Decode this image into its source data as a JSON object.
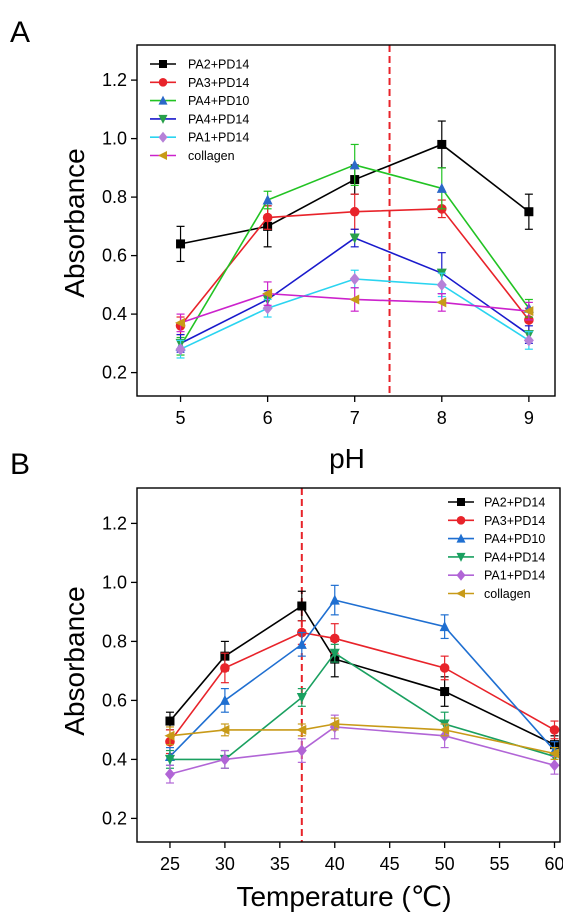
{
  "chart_data": [
    {
      "type": "line",
      "panel_label": "A",
      "xlabel": "pH",
      "ylabel": "Absorbance",
      "xlim": [
        4.5,
        9.3
      ],
      "ylim": [
        0.12,
        1.32
      ],
      "xticks": [
        5,
        6,
        7,
        8,
        9
      ],
      "yticks": [
        0.2,
        0.4,
        0.6,
        0.8,
        1.0,
        1.2
      ],
      "ytick_labels": [
        "0.2",
        "0.4",
        "0.6",
        "0.8",
        "1.0",
        "1.2"
      ],
      "reference_line": {
        "x": 7.4,
        "color": "#e8232a",
        "style": "dashed"
      },
      "legend_position": "top-left",
      "series": [
        {
          "name": "PA2+PD14",
          "color": "#000000",
          "marker": "square",
          "x": [
            5,
            6,
            7,
            8,
            9
          ],
          "y": [
            0.64,
            0.7,
            0.86,
            0.98,
            0.75
          ],
          "err": [
            0.06,
            0.07,
            0.05,
            0.08,
            0.06
          ]
        },
        {
          "name": "PA3+PD14",
          "color": "#e8232a",
          "marker": "circle",
          "x": [
            5,
            6,
            7,
            8,
            9
          ],
          "y": [
            0.36,
            0.73,
            0.75,
            0.76,
            0.38
          ],
          "err": [
            0.03,
            0.04,
            0.06,
            0.03,
            0.04
          ]
        },
        {
          "name": "PA4+PD10",
          "color": "#22c323",
          "marker_color": "#2b68c8",
          "marker": "triangle-up",
          "x": [
            5,
            6,
            7,
            8,
            9
          ],
          "y": [
            0.29,
            0.79,
            0.91,
            0.83,
            0.42
          ],
          "err": [
            0.03,
            0.03,
            0.07,
            0.07,
            0.03
          ]
        },
        {
          "name": "PA4+PD14",
          "color": "#1a1acc",
          "marker_color": "#28a04a",
          "marker": "triangle-down",
          "x": [
            5,
            6,
            7,
            8,
            9
          ],
          "y": [
            0.3,
            0.45,
            0.66,
            0.54,
            0.33
          ],
          "err": [
            0.03,
            0.03,
            0.03,
            0.07,
            0.03
          ]
        },
        {
          "name": "PA1+PD14",
          "color": "#2ad4f0",
          "marker_color": "#b681d8",
          "marker": "diamond",
          "x": [
            5,
            6,
            7,
            8,
            9
          ],
          "y": [
            0.28,
            0.42,
            0.52,
            0.5,
            0.31
          ],
          "err": [
            0.03,
            0.03,
            0.03,
            0.04,
            0.03
          ]
        },
        {
          "name": "collagen",
          "color": "#cc22cc",
          "marker_color": "#c89a18",
          "marker": "triangle-left",
          "x": [
            5,
            6,
            7,
            8,
            9
          ],
          "y": [
            0.37,
            0.47,
            0.45,
            0.44,
            0.41
          ],
          "err": [
            0.03,
            0.04,
            0.04,
            0.03,
            0.03
          ]
        }
      ]
    },
    {
      "type": "line",
      "panel_label": "B",
      "xlabel": "Temperature (℃)",
      "ylabel": "Absorbance",
      "xlim": [
        22,
        60.5
      ],
      "ylim": [
        0.12,
        1.32
      ],
      "xticks": [
        25,
        30,
        35,
        40,
        45,
        50,
        55,
        60
      ],
      "yticks": [
        0.2,
        0.4,
        0.6,
        0.8,
        1.0,
        1.2
      ],
      "ytick_labels": [
        "0.2",
        "0.4",
        "0.6",
        "0.8",
        "1.0",
        "1.2"
      ],
      "reference_line": {
        "x": 37,
        "color": "#e8232a",
        "style": "dashed"
      },
      "legend_position": "top-right",
      "series": [
        {
          "name": "PA2+PD14",
          "color": "#000000",
          "marker": "square",
          "x": [
            25,
            30,
            37,
            40,
            50,
            60
          ],
          "y": [
            0.53,
            0.75,
            0.92,
            0.74,
            0.63,
            0.45
          ],
          "err": [
            0.03,
            0.05,
            0.05,
            0.06,
            0.05,
            0.03
          ]
        },
        {
          "name": "PA3+PD14",
          "color": "#e8232a",
          "marker": "circle",
          "x": [
            25,
            30,
            37,
            40,
            50,
            60
          ],
          "y": [
            0.46,
            0.71,
            0.83,
            0.81,
            0.71,
            0.5
          ],
          "err": [
            0.04,
            0.05,
            0.04,
            0.05,
            0.04,
            0.03
          ]
        },
        {
          "name": "PA4+PD10",
          "color": "#1f6fd1",
          "marker": "triangle-up",
          "x": [
            25,
            30,
            37,
            40,
            50,
            60
          ],
          "y": [
            0.41,
            0.6,
            0.79,
            0.94,
            0.85,
            0.43
          ],
          "err": [
            0.03,
            0.04,
            0.04,
            0.05,
            0.04,
            0.03
          ]
        },
        {
          "name": "PA4+PD14",
          "color": "#1aa060",
          "marker": "triangle-down",
          "x": [
            25,
            30,
            37,
            40,
            50,
            60
          ],
          "y": [
            0.4,
            0.4,
            0.61,
            0.76,
            0.52,
            0.41
          ],
          "err": [
            0.03,
            0.03,
            0.03,
            0.03,
            0.04,
            0.03
          ]
        },
        {
          "name": "PA1+PD14",
          "color": "#b165d6",
          "marker": "diamond",
          "x": [
            25,
            30,
            37,
            40,
            50,
            60
          ],
          "y": [
            0.35,
            0.4,
            0.43,
            0.51,
            0.48,
            0.38
          ],
          "err": [
            0.03,
            0.03,
            0.04,
            0.04,
            0.04,
            0.03
          ]
        },
        {
          "name": "collagen",
          "color": "#c89a18",
          "marker": "triangle-left",
          "x": [
            25,
            30,
            37,
            40,
            50,
            60
          ],
          "y": [
            0.48,
            0.5,
            0.5,
            0.52,
            0.5,
            0.42
          ],
          "err": [
            0.03,
            0.02,
            0.02,
            0.02,
            0.02,
            0.02
          ]
        }
      ]
    }
  ]
}
